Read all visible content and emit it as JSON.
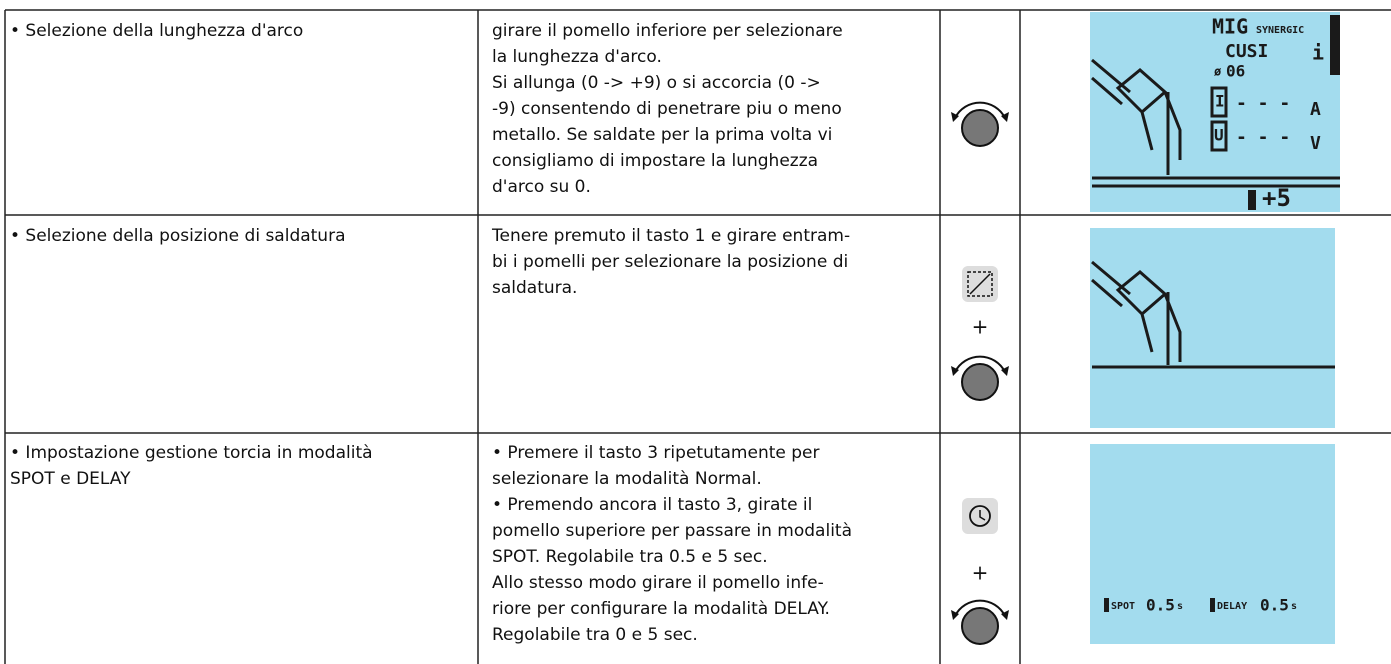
{
  "table": {
    "rows": [
      {
        "feature": "• Selezione della lunghezza d'arco",
        "instructions": [
          "girare il pomello inferiore per selezionare",
          "la lunghezza d'arco.",
          "Si allunga (0 -> +9) o si accorcia (0 ->",
          "-9) consentendo di penetrare piu o meno",
          "metallo. Se saldate per la prima volta vi",
          "consigliamo di impostare la lunghezza",
          "d'arco su 0."
        ],
        "display": {
          "mode": "MIG",
          "synergic": "SYNERGIC",
          "material": "CUSI",
          "info": "i",
          "diameter_symbol": "ø",
          "diameter": "06",
          "current_label": "I",
          "current": "- - -",
          "current_unit": "A",
          "voltage_label": "U",
          "voltage": "- - -",
          "voltage_unit": "V",
          "arc_length": "+5"
        }
      },
      {
        "feature": "• Selezione della posizione di saldatura",
        "instructions": [
          "Tenere premuto il tasto 1 e girare entram-",
          "bi i pomelli per selezionare la posizione di",
          "saldatura."
        ],
        "plus": "+"
      },
      {
        "feature": [
          "• Impostazione gestione torcia in modalità",
          "SPOT e DELAY"
        ],
        "instructions": [
          "• Premere il tasto 3 ripetutamente per",
          "selezionare la modalità Normal.",
          "• Premendo ancora il tasto 3, girate il",
          "pomello superiore per passare in modalità",
          "SPOT. Regolabile tra 0.5 e 5 sec.",
          "Allo stesso modo girare il pomello infe-",
          "riore per configurare la modalità DELAY.",
          "Regolabile tra 0 e 5 sec."
        ],
        "plus": "+",
        "display": {
          "spot_label": "SPOT",
          "spot_value": "0.5",
          "spot_unit": "s",
          "delay_label": "DELAY",
          "delay_value": "0.5",
          "delay_unit": "s"
        }
      }
    ]
  }
}
